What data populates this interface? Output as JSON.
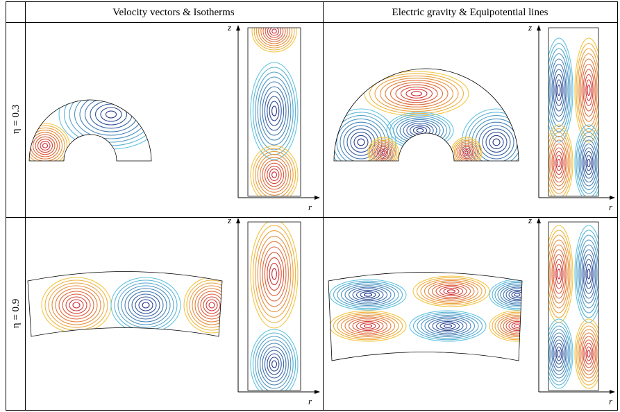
{
  "header": {
    "columns": [
      "Velocity vectors & Isotherms",
      "Electric gravity & Equipotential lines"
    ]
  },
  "rows": [
    {
      "label": "η = 0.3",
      "panels": [
        {
          "axes": {
            "z": "z",
            "r": "r"
          }
        },
        {
          "axes": {
            "z": "z",
            "r": "r"
          }
        }
      ]
    },
    {
      "label": "η = 0.9",
      "panels": [
        {
          "axes": {
            "z": "z",
            "r": "r"
          }
        },
        {
          "axes": {
            "z": "z",
            "r": "r"
          }
        }
      ]
    }
  ]
}
